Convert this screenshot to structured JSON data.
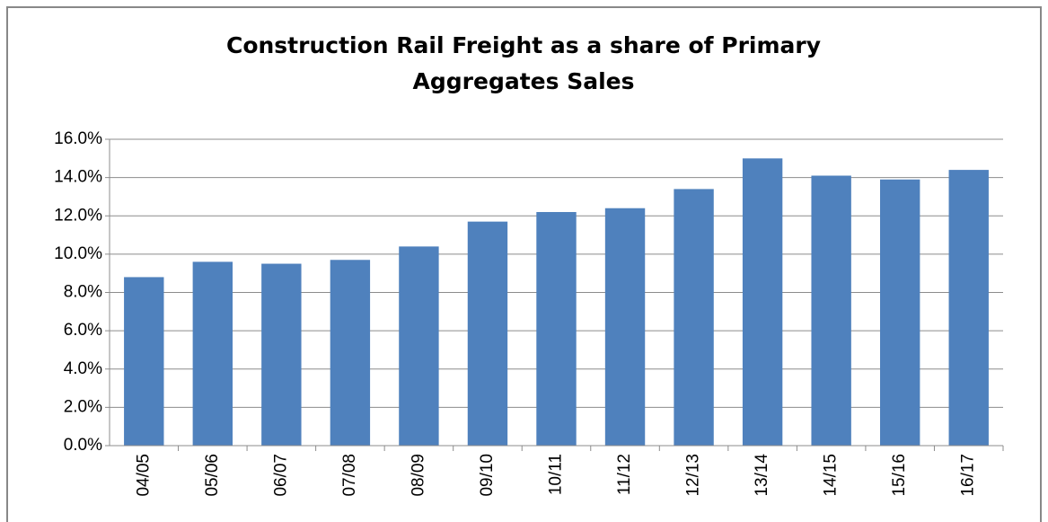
{
  "chart_data": {
    "type": "bar",
    "title": [
      "Construction Rail Freight as a share of Primary",
      "Aggregates Sales"
    ],
    "categories": [
      "04/05",
      "05/06",
      "06/07",
      "07/08",
      "08/09",
      "09/10",
      "10/11",
      "11/12",
      "12/13",
      "13/14",
      "14/15",
      "15/16",
      "16/17"
    ],
    "values": [
      8.8,
      9.6,
      9.5,
      9.7,
      10.4,
      11.7,
      12.2,
      12.4,
      13.4,
      15.0,
      14.1,
      13.9,
      14.4
    ],
    "color": "#4f81bd",
    "ylim": [
      0,
      16
    ],
    "yticks": [
      {
        "value": 0,
        "label": "0.0%"
      },
      {
        "value": 2,
        "label": "2.0%"
      },
      {
        "value": 4,
        "label": "4.0%"
      },
      {
        "value": 6,
        "label": "6.0%"
      },
      {
        "value": 8,
        "label": "8.0%"
      },
      {
        "value": 10,
        "label": "10.0%"
      },
      {
        "value": 12,
        "label": "12.0%"
      },
      {
        "value": 14,
        "label": "14.0%"
      },
      {
        "value": 16,
        "label": "16.0%"
      }
    ],
    "grid": true
  }
}
